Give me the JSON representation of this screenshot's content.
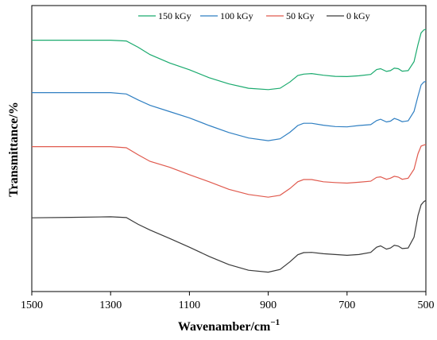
{
  "chart_data": {
    "type": "line",
    "title": "",
    "xlabel": "Wavenamber/cm",
    "xlabel_superscript": "−1",
    "ylabel": "Transmittance/%",
    "xlim": [
      1500,
      500
    ],
    "x_reversed": true,
    "x_ticks": [
      "1500",
      "1300",
      "1100",
      "900",
      "700",
      "500"
    ],
    "y_ticks_visible": false,
    "grid": false,
    "legend_position": "top-right",
    "series": [
      {
        "name": "150 kGy",
        "color": "#1aaa6e",
        "points": [
          [
            1500,
            0.896
          ],
          [
            1400,
            0.896
          ],
          [
            1300,
            0.896
          ],
          [
            1260,
            0.893
          ],
          [
            1230,
            0.87
          ],
          [
            1200,
            0.843
          ],
          [
            1150,
            0.812
          ],
          [
            1100,
            0.787
          ],
          [
            1050,
            0.758
          ],
          [
            1000,
            0.735
          ],
          [
            950,
            0.719
          ],
          [
            900,
            0.714
          ],
          [
            870,
            0.719
          ],
          [
            845,
            0.742
          ],
          [
            825,
            0.766
          ],
          [
            810,
            0.771
          ],
          [
            790,
            0.773
          ],
          [
            760,
            0.767
          ],
          [
            730,
            0.763
          ],
          [
            700,
            0.762
          ],
          [
            670,
            0.765
          ],
          [
            640,
            0.77
          ],
          [
            625,
            0.788
          ],
          [
            615,
            0.791
          ],
          [
            600,
            0.781
          ],
          [
            590,
            0.784
          ],
          [
            580,
            0.793
          ],
          [
            570,
            0.791
          ],
          [
            560,
            0.782
          ],
          [
            545,
            0.784
          ],
          [
            530,
            0.817
          ],
          [
            520,
            0.88
          ],
          [
            512,
            0.923
          ],
          [
            505,
            0.934
          ],
          [
            500,
            0.936
          ]
        ]
      },
      {
        "name": "100 kGy",
        "color": "#2f7fc2",
        "points": [
          [
            1500,
            0.703
          ],
          [
            1400,
            0.703
          ],
          [
            1300,
            0.703
          ],
          [
            1260,
            0.698
          ],
          [
            1230,
            0.676
          ],
          [
            1200,
            0.656
          ],
          [
            1150,
            0.633
          ],
          [
            1100,
            0.61
          ],
          [
            1050,
            0.582
          ],
          [
            1000,
            0.556
          ],
          [
            950,
            0.536
          ],
          [
            900,
            0.526
          ],
          [
            870,
            0.533
          ],
          [
            845,
            0.557
          ],
          [
            825,
            0.582
          ],
          [
            810,
            0.59
          ],
          [
            790,
            0.59
          ],
          [
            760,
            0.583
          ],
          [
            730,
            0.578
          ],
          [
            700,
            0.577
          ],
          [
            670,
            0.582
          ],
          [
            640,
            0.585
          ],
          [
            625,
            0.6
          ],
          [
            615,
            0.605
          ],
          [
            600,
            0.595
          ],
          [
            590,
            0.598
          ],
          [
            580,
            0.608
          ],
          [
            570,
            0.603
          ],
          [
            560,
            0.596
          ],
          [
            545,
            0.599
          ],
          [
            530,
            0.634
          ],
          [
            520,
            0.69
          ],
          [
            512,
            0.731
          ],
          [
            505,
            0.742
          ],
          [
            500,
            0.744
          ]
        ]
      },
      {
        "name": "50 kGy",
        "color": "#e05a4e",
        "points": [
          [
            1500,
            0.504
          ],
          [
            1400,
            0.504
          ],
          [
            1300,
            0.504
          ],
          [
            1260,
            0.5
          ],
          [
            1230,
            0.474
          ],
          [
            1200,
            0.45
          ],
          [
            1150,
            0.428
          ],
          [
            1100,
            0.401
          ],
          [
            1050,
            0.375
          ],
          [
            1000,
            0.347
          ],
          [
            950,
            0.328
          ],
          [
            900,
            0.318
          ],
          [
            870,
            0.325
          ],
          [
            845,
            0.35
          ],
          [
            825,
            0.375
          ],
          [
            810,
            0.383
          ],
          [
            790,
            0.383
          ],
          [
            760,
            0.375
          ],
          [
            730,
            0.372
          ],
          [
            700,
            0.37
          ],
          [
            670,
            0.373
          ],
          [
            640,
            0.377
          ],
          [
            625,
            0.391
          ],
          [
            615,
            0.393
          ],
          [
            600,
            0.384
          ],
          [
            590,
            0.388
          ],
          [
            580,
            0.395
          ],
          [
            570,
            0.392
          ],
          [
            560,
            0.384
          ],
          [
            545,
            0.388
          ],
          [
            530,
            0.421
          ],
          [
            520,
            0.478
          ],
          [
            512,
            0.506
          ],
          [
            505,
            0.51
          ],
          [
            500,
            0.512
          ]
        ]
      },
      {
        "name": "0 kGy",
        "color": "#3a3a3a",
        "points": [
          [
            1500,
            0.242
          ],
          [
            1400,
            0.244
          ],
          [
            1300,
            0.246
          ],
          [
            1260,
            0.243
          ],
          [
            1230,
            0.218
          ],
          [
            1200,
            0.197
          ],
          [
            1150,
            0.166
          ],
          [
            1100,
            0.134
          ],
          [
            1050,
            0.1
          ],
          [
            1000,
            0.07
          ],
          [
            950,
            0.049
          ],
          [
            900,
            0.042
          ],
          [
            870,
            0.052
          ],
          [
            845,
            0.08
          ],
          [
            825,
            0.106
          ],
          [
            810,
            0.114
          ],
          [
            790,
            0.115
          ],
          [
            760,
            0.11
          ],
          [
            730,
            0.107
          ],
          [
            700,
            0.104
          ],
          [
            670,
            0.107
          ],
          [
            640,
            0.115
          ],
          [
            625,
            0.134
          ],
          [
            615,
            0.139
          ],
          [
            600,
            0.127
          ],
          [
            590,
            0.131
          ],
          [
            580,
            0.141
          ],
          [
            570,
            0.138
          ],
          [
            560,
            0.129
          ],
          [
            545,
            0.131
          ],
          [
            530,
            0.171
          ],
          [
            520,
            0.251
          ],
          [
            512,
            0.29
          ],
          [
            505,
            0.302
          ],
          [
            500,
            0.306
          ]
        ]
      }
    ]
  }
}
